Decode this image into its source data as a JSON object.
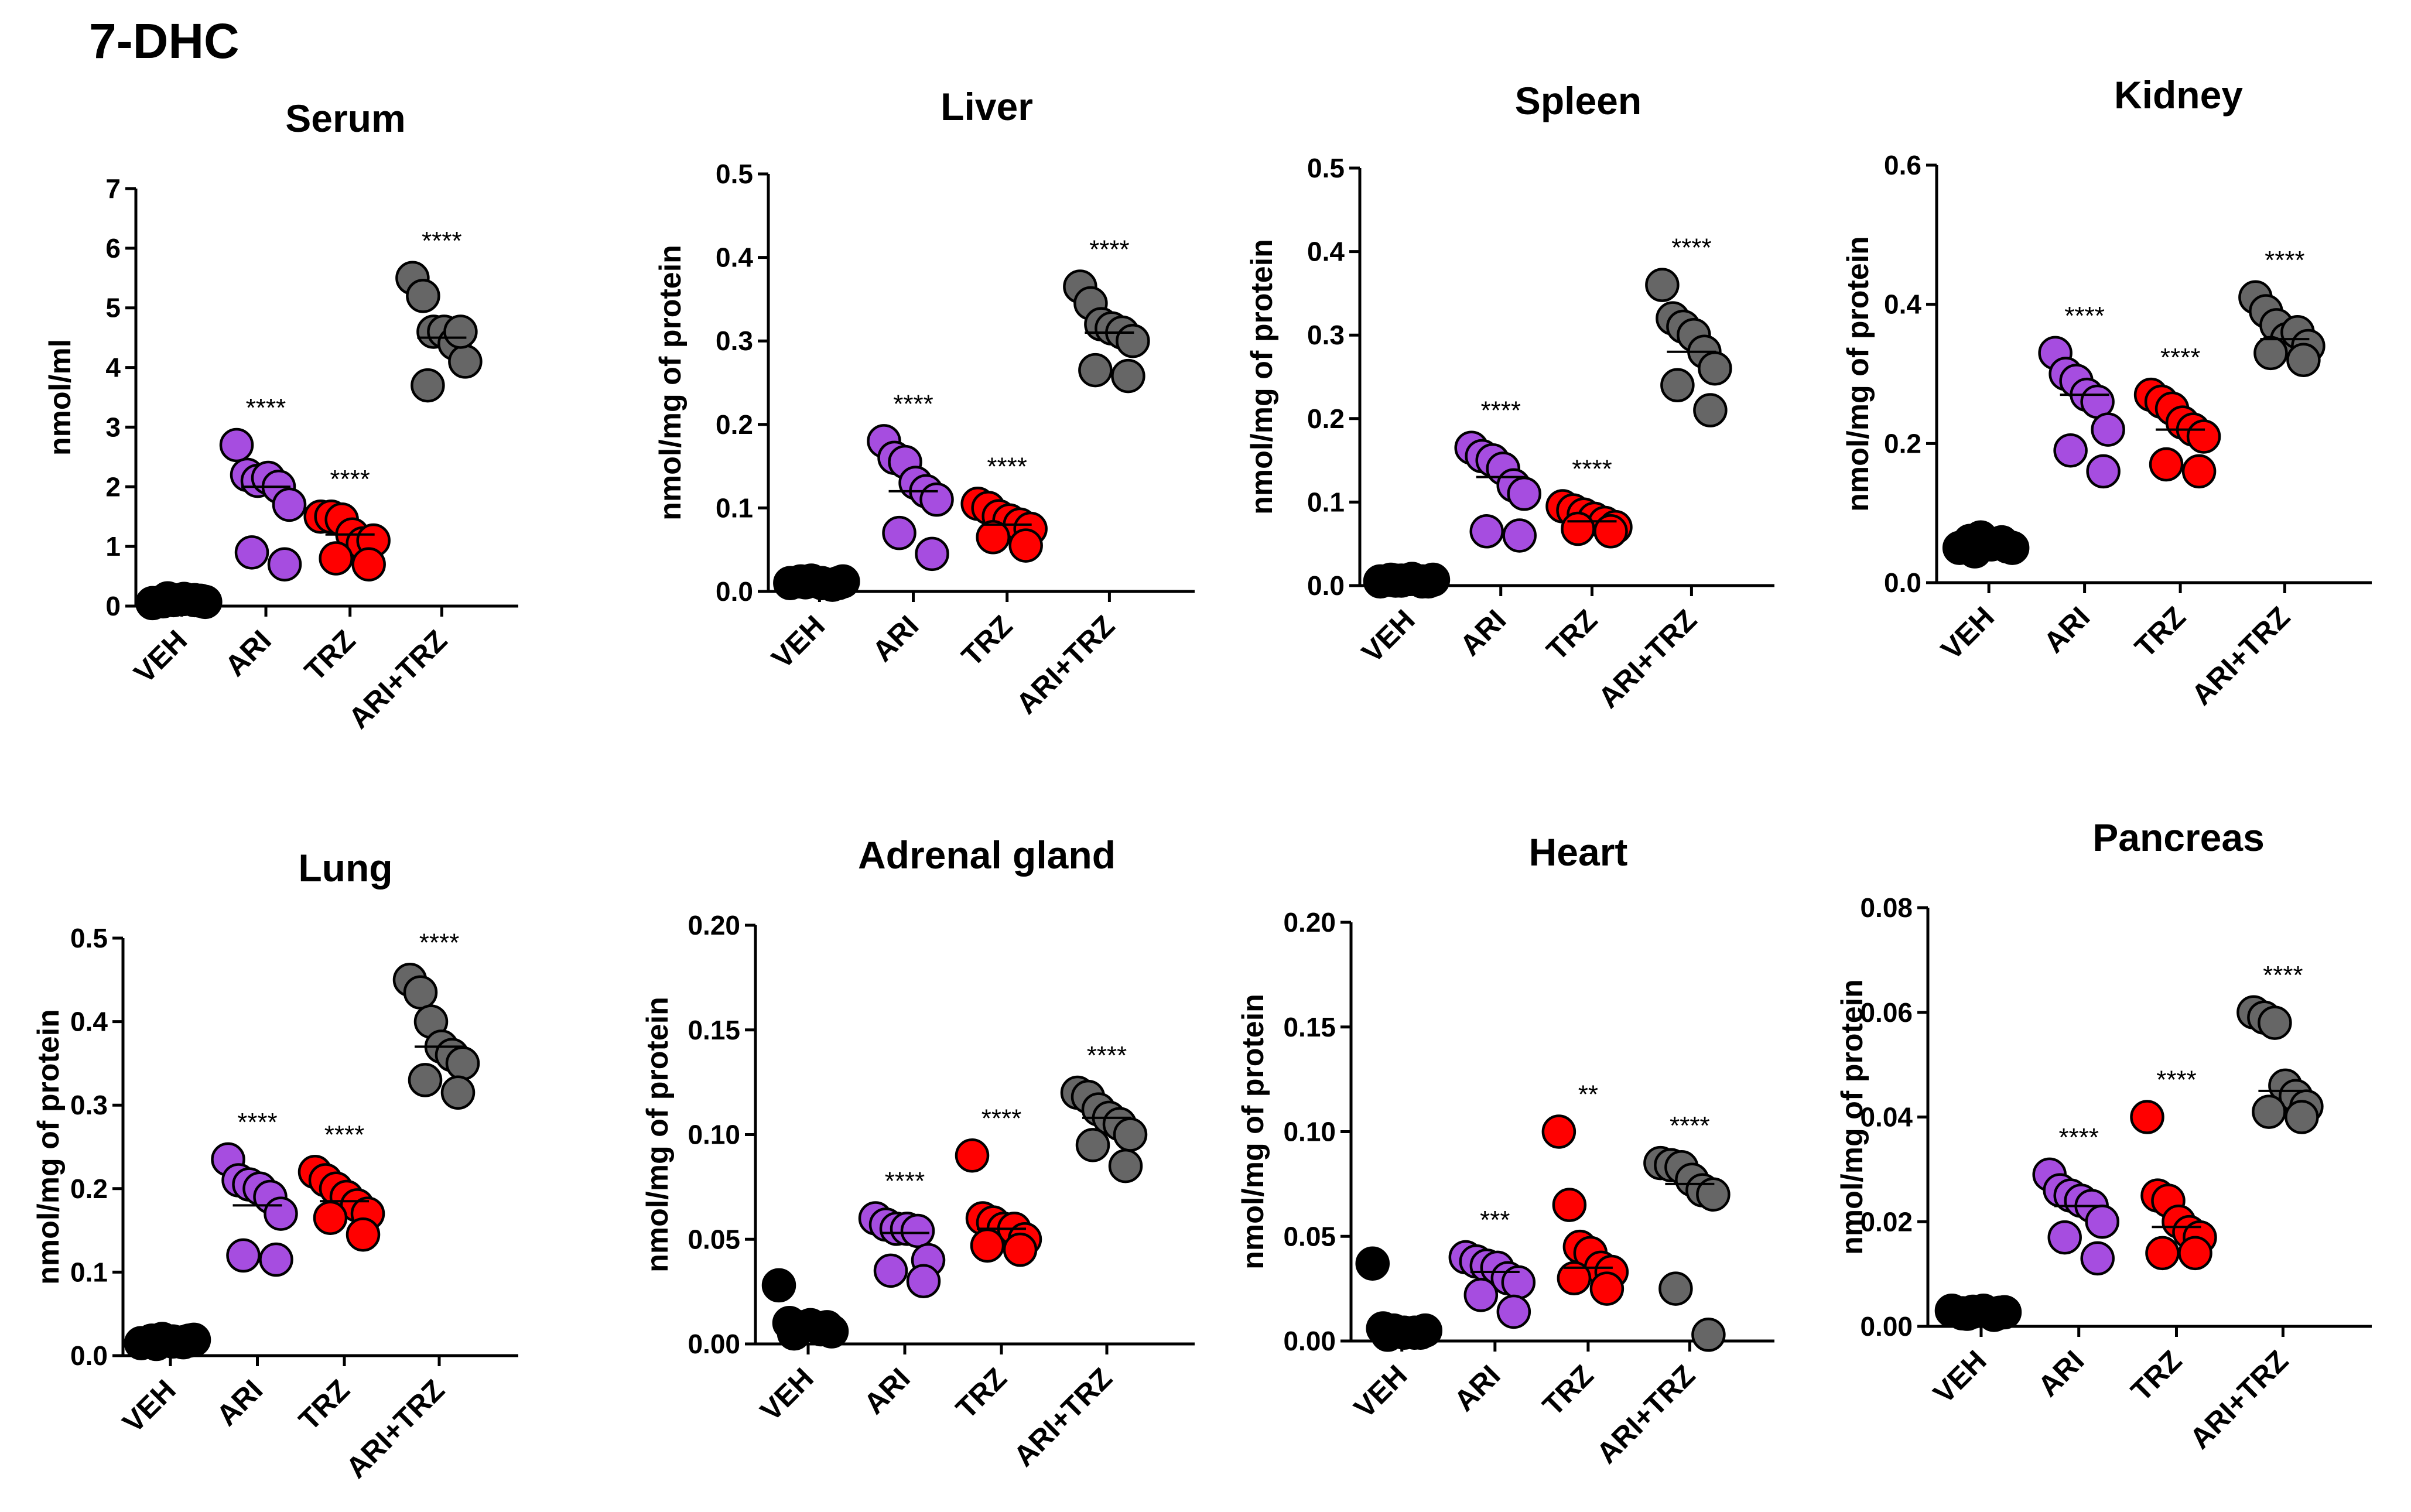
{
  "figure_title": "7-DHC",
  "colors": {
    "VEH": "#000000",
    "ARI": "#a64de0",
    "TRZ": "#ff0000",
    "ARI+TRZ": "#666666"
  },
  "chart_data": [
    {
      "type": "scatter",
      "title": "Serum",
      "ylabel": "nmol/ml",
      "ylim": [
        0,
        7
      ],
      "yticks": [
        "0",
        "1",
        "2",
        "3",
        "4",
        "5",
        "6",
        "7"
      ],
      "categories": [
        "VEH",
        "ARI",
        "TRZ",
        "ARI+TRZ"
      ],
      "series": [
        {
          "name": "VEH",
          "values": [
            0.05,
            0.08,
            0.1,
            0.12,
            0.1,
            0.07,
            0.13,
            0.09
          ],
          "mean": 0.1,
          "sig": ""
        },
        {
          "name": "ARI",
          "values": [
            2.7,
            2.2,
            2.1,
            2.15,
            2.0,
            1.7,
            0.9,
            0.7
          ],
          "mean": 2.0,
          "sig": "****"
        },
        {
          "name": "TRZ",
          "values": [
            1.5,
            1.5,
            1.45,
            1.2,
            1.05,
            1.1,
            0.8,
            0.7
          ],
          "mean": 1.2,
          "sig": "****"
        },
        {
          "name": "ARI+TRZ",
          "values": [
            5.5,
            5.2,
            4.6,
            4.6,
            4.4,
            4.1,
            3.7,
            4.6
          ],
          "mean": 4.5,
          "sig": "****"
        }
      ]
    },
    {
      "type": "scatter",
      "title": "Liver",
      "ylabel": "nmol/mg of protein",
      "ylim": [
        0,
        0.5
      ],
      "yticks": [
        "0.0",
        "0.1",
        "0.2",
        "0.3",
        "0.4",
        "0.5"
      ],
      "categories": [
        "VEH",
        "ARI",
        "TRZ",
        "ARI+TRZ"
      ],
      "series": [
        {
          "name": "VEH",
          "values": [
            0.01,
            0.012,
            0.013,
            0.01,
            0.008,
            0.012,
            0.011,
            0.01
          ],
          "mean": 0.011,
          "sig": ""
        },
        {
          "name": "ARI",
          "values": [
            0.18,
            0.16,
            0.155,
            0.13,
            0.12,
            0.11,
            0.07,
            0.045
          ],
          "mean": 0.12,
          "sig": "****"
        },
        {
          "name": "TRZ",
          "values": [
            0.105,
            0.1,
            0.09,
            0.085,
            0.08,
            0.075,
            0.065,
            0.055
          ],
          "mean": 0.08,
          "sig": "****"
        },
        {
          "name": "ARI+TRZ",
          "values": [
            0.365,
            0.345,
            0.32,
            0.315,
            0.31,
            0.3,
            0.265,
            0.258
          ],
          "mean": 0.31,
          "sig": "****"
        }
      ]
    },
    {
      "type": "scatter",
      "title": "Spleen",
      "ylabel": "nmol/mg of protein",
      "ylim": [
        0,
        0.5
      ],
      "yticks": [
        "0.0",
        "0.1",
        "0.2",
        "0.3",
        "0.4",
        "0.5"
      ],
      "categories": [
        "VEH",
        "ARI",
        "TRZ",
        "ARI+TRZ"
      ],
      "series": [
        {
          "name": "VEH",
          "values": [
            0.005,
            0.007,
            0.006,
            0.008,
            0.005,
            0.007,
            0.006,
            0.005
          ],
          "mean": 0.006,
          "sig": ""
        },
        {
          "name": "ARI",
          "values": [
            0.165,
            0.155,
            0.15,
            0.14,
            0.12,
            0.11,
            0.065,
            0.06
          ],
          "mean": 0.13,
          "sig": "****"
        },
        {
          "name": "TRZ",
          "values": [
            0.095,
            0.09,
            0.085,
            0.08,
            0.075,
            0.07,
            0.068,
            0.065
          ],
          "mean": 0.077,
          "sig": "****"
        },
        {
          "name": "ARI+TRZ",
          "values": [
            0.36,
            0.32,
            0.31,
            0.3,
            0.28,
            0.26,
            0.24,
            0.21
          ],
          "mean": 0.28,
          "sig": "****"
        }
      ]
    },
    {
      "type": "scatter",
      "title": "Kidney",
      "ylabel": "nmol/mg of protein",
      "ylim": [
        0,
        0.6
      ],
      "yticks": [
        "0.0",
        "0.2",
        "0.4",
        "0.6"
      ],
      "categories": [
        "VEH",
        "ARI",
        "TRZ",
        "ARI+TRZ"
      ],
      "series": [
        {
          "name": "VEH",
          "values": [
            0.05,
            0.06,
            0.065,
            0.055,
            0.058,
            0.05,
            0.045,
            0.052
          ],
          "mean": 0.055,
          "sig": ""
        },
        {
          "name": "ARI",
          "values": [
            0.33,
            0.3,
            0.29,
            0.27,
            0.26,
            0.22,
            0.19,
            0.16
          ],
          "mean": 0.27,
          "sig": "****"
        },
        {
          "name": "TRZ",
          "values": [
            0.27,
            0.26,
            0.25,
            0.23,
            0.22,
            0.21,
            0.17,
            0.16
          ],
          "mean": 0.22,
          "sig": "****"
        },
        {
          "name": "ARI+TRZ",
          "values": [
            0.41,
            0.39,
            0.37,
            0.35,
            0.36,
            0.34,
            0.33,
            0.32
          ],
          "mean": 0.35,
          "sig": "****"
        }
      ]
    },
    {
      "type": "scatter",
      "title": "Lung",
      "ylabel": "nmol/mg of protein",
      "ylim": [
        0,
        0.5
      ],
      "yticks": [
        "0.0",
        "0.1",
        "0.2",
        "0.3",
        "0.4",
        "0.5"
      ],
      "categories": [
        "VEH",
        "ARI",
        "TRZ",
        "ARI+TRZ"
      ],
      "series": [
        {
          "name": "VEH",
          "values": [
            0.015,
            0.018,
            0.02,
            0.017,
            0.016,
            0.019,
            0.014,
            0.018
          ],
          "mean": 0.017,
          "sig": ""
        },
        {
          "name": "ARI",
          "values": [
            0.235,
            0.21,
            0.205,
            0.2,
            0.19,
            0.17,
            0.12,
            0.115
          ],
          "mean": 0.18,
          "sig": "****"
        },
        {
          "name": "TRZ",
          "values": [
            0.22,
            0.21,
            0.2,
            0.19,
            0.18,
            0.17,
            0.165,
            0.145
          ],
          "mean": 0.185,
          "sig": "****"
        },
        {
          "name": "ARI+TRZ",
          "values": [
            0.45,
            0.435,
            0.4,
            0.37,
            0.36,
            0.35,
            0.33,
            0.315
          ],
          "mean": 0.37,
          "sig": "****"
        }
      ]
    },
    {
      "type": "scatter",
      "title": "Adrenal gland",
      "ylabel": "nmol/mg of protein",
      "ylim": [
        0,
        0.2
      ],
      "yticks": [
        "0.00",
        "0.05",
        "0.10",
        "0.15",
        "0.20"
      ],
      "categories": [
        "VEH",
        "ARI",
        "TRZ",
        "ARI+TRZ"
      ],
      "series": [
        {
          "name": "VEH",
          "values": [
            0.028,
            0.01,
            0.008,
            0.009,
            0.007,
            0.006,
            0.005,
            0.008
          ],
          "mean": 0.009,
          "sig": ""
        },
        {
          "name": "ARI",
          "values": [
            0.06,
            0.057,
            0.055,
            0.055,
            0.054,
            0.04,
            0.035,
            0.03
          ],
          "mean": 0.053,
          "sig": "****"
        },
        {
          "name": "TRZ",
          "values": [
            0.09,
            0.06,
            0.058,
            0.055,
            0.055,
            0.05,
            0.047,
            0.045
          ],
          "mean": 0.055,
          "sig": "****"
        },
        {
          "name": "ARI+TRZ",
          "values": [
            0.12,
            0.118,
            0.112,
            0.108,
            0.105,
            0.1,
            0.095,
            0.085
          ],
          "mean": 0.108,
          "sig": "****"
        }
      ]
    },
    {
      "type": "scatter",
      "title": "Heart",
      "ylabel": "nmol/mg of protein",
      "ylim": [
        0,
        0.2
      ],
      "yticks": [
        "0.00",
        "0.05",
        "0.10",
        "0.15",
        "0.20"
      ],
      "categories": [
        "VEH",
        "ARI",
        "TRZ",
        "ARI+TRZ"
      ],
      "series": [
        {
          "name": "VEH",
          "values": [
            0.037,
            0.006,
            0.005,
            0.004,
            0.004,
            0.005,
            0.003,
            0.004
          ],
          "mean": 0.005,
          "sig": ""
        },
        {
          "name": "ARI",
          "values": [
            0.04,
            0.038,
            0.036,
            0.035,
            0.03,
            0.028,
            0.022,
            0.014
          ],
          "mean": 0.033,
          "sig": "***"
        },
        {
          "name": "TRZ",
          "values": [
            0.1,
            0.065,
            0.045,
            0.042,
            0.035,
            0.033,
            0.03,
            0.025
          ],
          "mean": 0.035,
          "sig": "**"
        },
        {
          "name": "ARI+TRZ",
          "values": [
            0.085,
            0.084,
            0.083,
            0.077,
            0.072,
            0.07,
            0.025,
            0.003
          ],
          "mean": 0.075,
          "sig": "****"
        }
      ]
    },
    {
      "type": "scatter",
      "title": "Pancreas",
      "ylabel": "nmol/mg of protein",
      "ylim": [
        0,
        0.08
      ],
      "yticks": [
        "0.00",
        "0.02",
        "0.04",
        "0.06",
        "0.08"
      ],
      "categories": [
        "VEH",
        "ARI",
        "TRZ",
        "ARI+TRZ"
      ],
      "series": [
        {
          "name": "VEH",
          "values": [
            0.003,
            0.0025,
            0.0028,
            0.003,
            0.0022,
            0.0027,
            0.0024,
            0.0026
          ],
          "mean": 0.0026,
          "sig": ""
        },
        {
          "name": "ARI",
          "values": [
            0.029,
            0.026,
            0.025,
            0.024,
            0.023,
            0.02,
            0.017,
            0.013
          ],
          "mean": 0.023,
          "sig": "****"
        },
        {
          "name": "TRZ",
          "values": [
            0.04,
            0.025,
            0.024,
            0.02,
            0.018,
            0.017,
            0.014,
            0.014
          ],
          "mean": 0.019,
          "sig": "****"
        },
        {
          "name": "ARI+TRZ",
          "values": [
            0.06,
            0.059,
            0.058,
            0.046,
            0.044,
            0.042,
            0.041,
            0.04
          ],
          "mean": 0.045,
          "sig": "****"
        }
      ]
    }
  ]
}
